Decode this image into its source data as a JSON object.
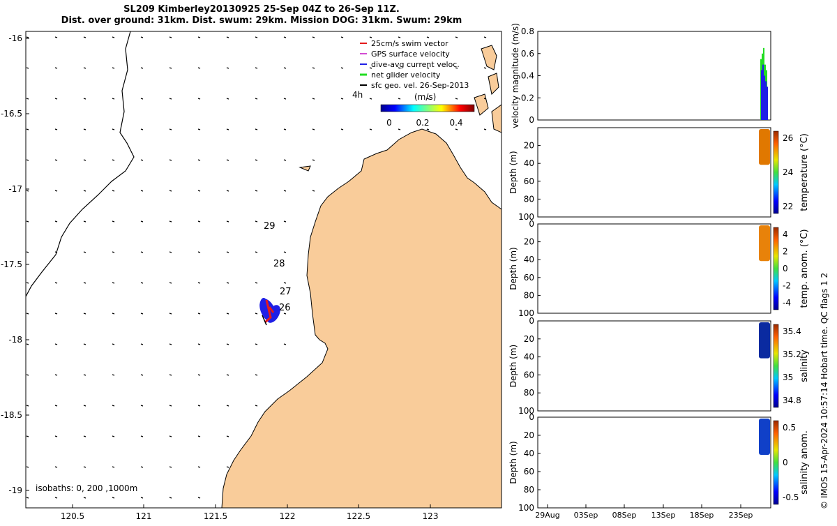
{
  "title": {
    "line1": "SL209 Kimberley20130925 25-Sep 04Z to 26-Sep 11Z.",
    "line2": "Dist. over ground: 31km. Dist. swum: 29km. Mission DOG: 31km. Swum: 29km"
  },
  "map": {
    "xticks": [
      "120.5",
      "121",
      "121.5",
      "122",
      "122.5",
      "123"
    ],
    "yticks": [
      "-16",
      "-16.5",
      "-17",
      "-17.5",
      "-18",
      "-18.5",
      "-19"
    ],
    "isobaths_label": "isobaths: 0,  200 ,1000m",
    "legend": [
      {
        "label": "25cm/s swim vector",
        "color": "#e41a1c"
      },
      {
        "label": "GPS surface velocity",
        "color": "#d24dd2"
      },
      {
        "label": "dive-avg current veloc.",
        "color": "#1f1fe6"
      },
      {
        "label": "net glider velocity",
        "color": "#22dd22"
      },
      {
        "label": "sfc geo. vel. 26-Sep-2013",
        "color": "#000000"
      }
    ],
    "time_label": "4h",
    "colorbar_label": "(m/s)",
    "colorbar_ticks": [
      "0",
      "0.2",
      "0.4"
    ],
    "day_labels": [
      "29",
      "28",
      "27",
      "26"
    ],
    "land_color": "#f9cc9a"
  },
  "chart_data": [
    {
      "type": "bar",
      "title": "",
      "ylabel": "velocity magnitude (m/s)",
      "ylim": [
        0,
        0.8
      ],
      "yticks": [
        "0",
        "0.2",
        "0.4",
        "0.6",
        "0.8"
      ],
      "series": [
        {
          "values": [
            0.55,
            0.6,
            0.65,
            0.5,
            0.45
          ],
          "color": "#22dd22"
        },
        {
          "values": [
            0.45,
            0.5,
            0.4,
            0.35,
            0.3
          ],
          "color": "#1f1fe6"
        }
      ]
    },
    {
      "type": "heatmap",
      "ylabel": "Depth (m)",
      "yticks": [
        "20",
        "40",
        "60",
        "80",
        "100"
      ],
      "colorbar_label": "temperature (°C)",
      "colorbar_ticks": [
        "26",
        "24",
        "22"
      ]
    },
    {
      "type": "heatmap",
      "ylabel": "Depth (m)",
      "yticks": [
        "0",
        "20",
        "40",
        "60",
        "80",
        "100"
      ],
      "colorbar_label": "temp. anom. (°C)",
      "colorbar_ticks": [
        "4",
        "2",
        "0",
        "-2",
        "-4"
      ]
    },
    {
      "type": "heatmap",
      "ylabel": "Depth (m)",
      "yticks": [
        "0",
        "20",
        "40",
        "60",
        "80",
        "100"
      ],
      "colorbar_label": "salinity",
      "colorbar_ticks": [
        "35.4",
        "35.2",
        "35",
        "34.8"
      ]
    },
    {
      "type": "heatmap",
      "ylabel": "Depth (m)",
      "yticks": [
        "0",
        "20",
        "40",
        "60",
        "80",
        "100"
      ],
      "colorbar_label": "salinity anom.",
      "colorbar_ticks": [
        "0.5",
        "0",
        "-0.5"
      ]
    }
  ],
  "xdates": [
    "29Aug",
    "03Sep",
    "08Sep",
    "13Sep",
    "18Sep",
    "23Sep"
  ],
  "footer": "© IMOS 15-Apr-2024 10:57:14 Hobart time. QC flags 1  2"
}
